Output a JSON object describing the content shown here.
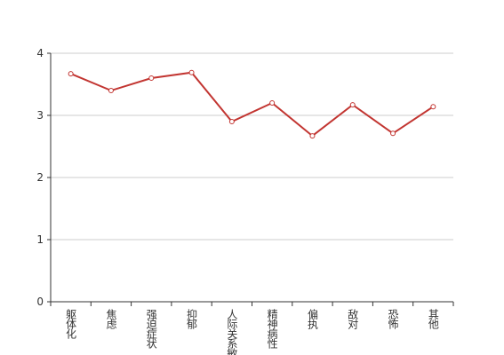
{
  "chart_data": {
    "type": "line",
    "categories": [
      "躯体化",
      "焦虑",
      "强迫症状",
      "抑郁",
      "人际关系敏感",
      "精神病性",
      "偏执",
      "敌对",
      "恐怖",
      "其他"
    ],
    "series": [
      {
        "color": "#c23531",
        "values": [
          3.67,
          3.4,
          3.6,
          3.69,
          2.9,
          3.2,
          2.67,
          3.17,
          2.71,
          3.14
        ]
      }
    ],
    "ylim": [
      0,
      4
    ],
    "yticks": [
      0,
      1,
      2,
      3,
      4
    ],
    "grid": true
  }
}
